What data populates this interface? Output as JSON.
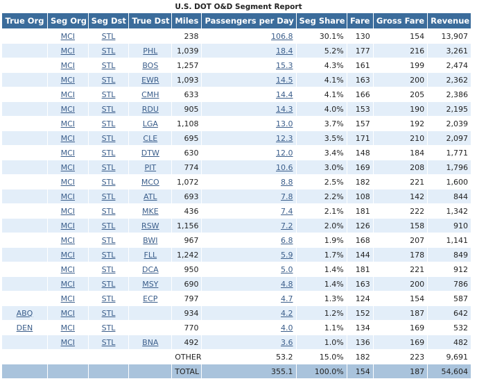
{
  "title": "U.S. DOT O&D Segment Report",
  "columns": [
    "True Org",
    "Seg Org",
    "Seg Dst",
    "True Dst",
    "Miles",
    "Passengers per Day",
    "Seg Share",
    "Fare",
    "Gross Fare",
    "Revenue"
  ],
  "rows": [
    {
      "true_org": "",
      "seg_org": "MCI",
      "seg_dst": "STL",
      "true_dst": "",
      "miles": "238",
      "ppd": "106.8",
      "share": "30.1%",
      "fare": "130",
      "gross": "154",
      "revenue": "13,907"
    },
    {
      "true_org": "",
      "seg_org": "MCI",
      "seg_dst": "STL",
      "true_dst": "PHL",
      "miles": "1,039",
      "ppd": "18.4",
      "share": "5.2%",
      "fare": "177",
      "gross": "216",
      "revenue": "3,261"
    },
    {
      "true_org": "",
      "seg_org": "MCI",
      "seg_dst": "STL",
      "true_dst": "BOS",
      "miles": "1,257",
      "ppd": "15.3",
      "share": "4.3%",
      "fare": "161",
      "gross": "199",
      "revenue": "2,474"
    },
    {
      "true_org": "",
      "seg_org": "MCI",
      "seg_dst": "STL",
      "true_dst": "EWR",
      "miles": "1,093",
      "ppd": "14.5",
      "share": "4.1%",
      "fare": "163",
      "gross": "200",
      "revenue": "2,362"
    },
    {
      "true_org": "",
      "seg_org": "MCI",
      "seg_dst": "STL",
      "true_dst": "CMH",
      "miles": "633",
      "ppd": "14.4",
      "share": "4.1%",
      "fare": "166",
      "gross": "205",
      "revenue": "2,386"
    },
    {
      "true_org": "",
      "seg_org": "MCI",
      "seg_dst": "STL",
      "true_dst": "RDU",
      "miles": "905",
      "ppd": "14.3",
      "share": "4.0%",
      "fare": "153",
      "gross": "190",
      "revenue": "2,195"
    },
    {
      "true_org": "",
      "seg_org": "MCI",
      "seg_dst": "STL",
      "true_dst": "LGA",
      "miles": "1,108",
      "ppd": "13.0",
      "share": "3.7%",
      "fare": "157",
      "gross": "192",
      "revenue": "2,039"
    },
    {
      "true_org": "",
      "seg_org": "MCI",
      "seg_dst": "STL",
      "true_dst": "CLE",
      "miles": "695",
      "ppd": "12.3",
      "share": "3.5%",
      "fare": "171",
      "gross": "210",
      "revenue": "2,097"
    },
    {
      "true_org": "",
      "seg_org": "MCI",
      "seg_dst": "STL",
      "true_dst": "DTW",
      "miles": "630",
      "ppd": "12.0",
      "share": "3.4%",
      "fare": "148",
      "gross": "184",
      "revenue": "1,771"
    },
    {
      "true_org": "",
      "seg_org": "MCI",
      "seg_dst": "STL",
      "true_dst": "PIT",
      "miles": "774",
      "ppd": "10.6",
      "share": "3.0%",
      "fare": "169",
      "gross": "208",
      "revenue": "1,796"
    },
    {
      "true_org": "",
      "seg_org": "MCI",
      "seg_dst": "STL",
      "true_dst": "MCO",
      "miles": "1,072",
      "ppd": "8.8",
      "share": "2.5%",
      "fare": "182",
      "gross": "221",
      "revenue": "1,600"
    },
    {
      "true_org": "",
      "seg_org": "MCI",
      "seg_dst": "STL",
      "true_dst": "ATL",
      "miles": "693",
      "ppd": "7.8",
      "share": "2.2%",
      "fare": "108",
      "gross": "142",
      "revenue": "844"
    },
    {
      "true_org": "",
      "seg_org": "MCI",
      "seg_dst": "STL",
      "true_dst": "MKE",
      "miles": "436",
      "ppd": "7.4",
      "share": "2.1%",
      "fare": "181",
      "gross": "222",
      "revenue": "1,342"
    },
    {
      "true_org": "",
      "seg_org": "MCI",
      "seg_dst": "STL",
      "true_dst": "RSW",
      "miles": "1,156",
      "ppd": "7.2",
      "share": "2.0%",
      "fare": "126",
      "gross": "158",
      "revenue": "910"
    },
    {
      "true_org": "",
      "seg_org": "MCI",
      "seg_dst": "STL",
      "true_dst": "BWI",
      "miles": "967",
      "ppd": "6.8",
      "share": "1.9%",
      "fare": "168",
      "gross": "207",
      "revenue": "1,141"
    },
    {
      "true_org": "",
      "seg_org": "MCI",
      "seg_dst": "STL",
      "true_dst": "FLL",
      "miles": "1,242",
      "ppd": "5.9",
      "share": "1.7%",
      "fare": "144",
      "gross": "178",
      "revenue": "849"
    },
    {
      "true_org": "",
      "seg_org": "MCI",
      "seg_dst": "STL",
      "true_dst": "DCA",
      "miles": "950",
      "ppd": "5.0",
      "share": "1.4%",
      "fare": "181",
      "gross": "221",
      "revenue": "912"
    },
    {
      "true_org": "",
      "seg_org": "MCI",
      "seg_dst": "STL",
      "true_dst": "MSY",
      "miles": "690",
      "ppd": "4.8",
      "share": "1.4%",
      "fare": "163",
      "gross": "200",
      "revenue": "786"
    },
    {
      "true_org": "",
      "seg_org": "MCI",
      "seg_dst": "STL",
      "true_dst": "ECP",
      "miles": "797",
      "ppd": "4.7",
      "share": "1.3%",
      "fare": "124",
      "gross": "154",
      "revenue": "587"
    },
    {
      "true_org": "ABQ",
      "seg_org": "MCI",
      "seg_dst": "STL",
      "true_dst": "",
      "miles": "934",
      "ppd": "4.2",
      "share": "1.2%",
      "fare": "152",
      "gross": "187",
      "revenue": "642"
    },
    {
      "true_org": "DEN",
      "seg_org": "MCI",
      "seg_dst": "STL",
      "true_dst": "",
      "miles": "770",
      "ppd": "4.0",
      "share": "1.1%",
      "fare": "134",
      "gross": "169",
      "revenue": "532"
    },
    {
      "true_org": "",
      "seg_org": "MCI",
      "seg_dst": "STL",
      "true_dst": "BNA",
      "miles": "492",
      "ppd": "3.6",
      "share": "1.0%",
      "fare": "136",
      "gross": "169",
      "revenue": "482"
    }
  ],
  "other": {
    "label": "OTHER",
    "ppd": "53.2",
    "share": "15.0%",
    "fare": "182",
    "gross": "223",
    "revenue": "9,691"
  },
  "total": {
    "label": "TOTAL",
    "ppd": "355.1",
    "share": "100.0%",
    "fare": "154",
    "gross": "187",
    "revenue": "54,604"
  },
  "colors": {
    "header_bg": "#3b6c9b",
    "stripe": "#e3eef9",
    "total_bg": "#a9c3dc",
    "link": "#3a5d8a"
  }
}
